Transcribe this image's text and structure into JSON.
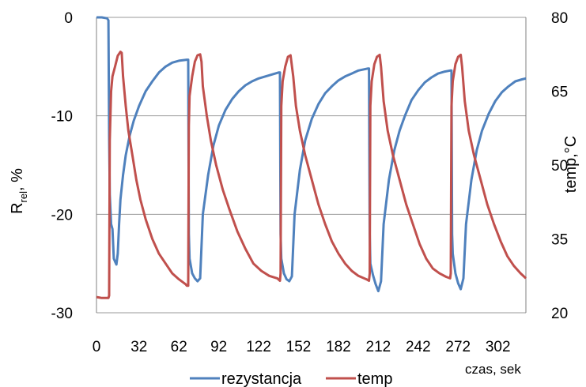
{
  "chart_data": {
    "type": "line",
    "xlabel": "czas, sek",
    "ylabel_left": {
      "main": "R",
      "sub": "rel",
      "tail": ", %"
    },
    "ylabel_right": "temp,°C",
    "x_range": [
      0,
      323
    ],
    "x_ticks": [
      0,
      32,
      62,
      92,
      122,
      152,
      182,
      212,
      242,
      272,
      302
    ],
    "y_left": {
      "range": [
        -30,
        0
      ],
      "ticks": [
        0,
        -10,
        -20,
        -30
      ]
    },
    "y_right": {
      "range": [
        20,
        80
      ],
      "ticks": [
        80,
        65,
        50,
        35,
        20
      ]
    },
    "grid": {
      "horizontal": true,
      "vertical": false
    },
    "legend_position": "bottom",
    "series": [
      {
        "name": "rezystancja",
        "axis": "left",
        "color": "#4F81BD",
        "points": [
          [
            0,
            0
          ],
          [
            4,
            0
          ],
          [
            8,
            -0.1
          ],
          [
            9,
            -0.3
          ],
          [
            9.5,
            -12
          ],
          [
            10,
            -18
          ],
          [
            11,
            -21
          ],
          [
            12,
            -21.5
          ],
          [
            13,
            -24.5
          ],
          [
            14,
            -24.8
          ],
          [
            15,
            -25.1
          ],
          [
            16,
            -24
          ],
          [
            17,
            -21
          ],
          [
            18,
            -18.5
          ],
          [
            20,
            -16
          ],
          [
            22,
            -14
          ],
          [
            25,
            -12
          ],
          [
            28,
            -10.5
          ],
          [
            32,
            -9
          ],
          [
            37,
            -7.5
          ],
          [
            42,
            -6.5
          ],
          [
            47,
            -5.6
          ],
          [
            52,
            -5
          ],
          [
            57,
            -4.6
          ],
          [
            62,
            -4.4
          ],
          [
            68,
            -4.3
          ],
          [
            69,
            -4.3
          ],
          [
            69.5,
            -22
          ],
          [
            70,
            -24.5
          ],
          [
            72,
            -26
          ],
          [
            74,
            -26.5
          ],
          [
            76,
            -26.8
          ],
          [
            78,
            -26.5
          ],
          [
            80,
            -20
          ],
          [
            84,
            -16
          ],
          [
            88,
            -13
          ],
          [
            92,
            -11
          ],
          [
            97,
            -9.4
          ],
          [
            102,
            -8.3
          ],
          [
            107,
            -7.5
          ],
          [
            112,
            -6.9
          ],
          [
            117,
            -6.5
          ],
          [
            122,
            -6.2
          ],
          [
            127,
            -6
          ],
          [
            132,
            -5.8
          ],
          [
            137,
            -5.6
          ],
          [
            138,
            -5.6
          ],
          [
            138.5,
            -22
          ],
          [
            139,
            -24.5
          ],
          [
            141,
            -26
          ],
          [
            143,
            -26.6
          ],
          [
            145,
            -26.8
          ],
          [
            147,
            -26.3
          ],
          [
            149,
            -20
          ],
          [
            153,
            -15.5
          ],
          [
            157,
            -12.5
          ],
          [
            162,
            -10.3
          ],
          [
            167,
            -8.8
          ],
          [
            172,
            -7.7
          ],
          [
            177,
            -7
          ],
          [
            182,
            -6.4
          ],
          [
            187,
            -6
          ],
          [
            192,
            -5.7
          ],
          [
            197,
            -5.4
          ],
          [
            204,
            -5.2
          ],
          [
            205,
            -5.2
          ],
          [
            205.5,
            -22
          ],
          [
            206,
            -25
          ],
          [
            208,
            -26.2
          ],
          [
            210,
            -27.1
          ],
          [
            212,
            -27.8
          ],
          [
            214,
            -26.8
          ],
          [
            216,
            -21
          ],
          [
            220,
            -16.5
          ],
          [
            224,
            -13.5
          ],
          [
            228,
            -11.5
          ],
          [
            232,
            -10
          ],
          [
            237,
            -8.4
          ],
          [
            242,
            -7.4
          ],
          [
            247,
            -6.6
          ],
          [
            252,
            -6.1
          ],
          [
            257,
            -5.7
          ],
          [
            262,
            -5.5
          ],
          [
            266,
            -5.4
          ],
          [
            267,
            -5.4
          ],
          [
            267.5,
            -22
          ],
          [
            268,
            -24
          ],
          [
            270,
            -26
          ],
          [
            272,
            -27
          ],
          [
            274,
            -27.6
          ],
          [
            276,
            -26.5
          ],
          [
            278,
            -21
          ],
          [
            282,
            -16.5
          ],
          [
            286,
            -13.5
          ],
          [
            290,
            -11.5
          ],
          [
            295,
            -9.8
          ],
          [
            300,
            -8.5
          ],
          [
            305,
            -7.6
          ],
          [
            310,
            -7
          ],
          [
            315,
            -6.5
          ],
          [
            320,
            -6.3
          ],
          [
            323,
            -6.2
          ]
        ]
      },
      {
        "name": "temp",
        "axis": "right",
        "color": "#C0504D",
        "points": [
          [
            0,
            23.2
          ],
          [
            4,
            23
          ],
          [
            9,
            23
          ],
          [
            9.5,
            23.5
          ],
          [
            10,
            55
          ],
          [
            11,
            65
          ],
          [
            12,
            68
          ],
          [
            14,
            70
          ],
          [
            16,
            72.2
          ],
          [
            18,
            73
          ],
          [
            19,
            72.8
          ],
          [
            20,
            68
          ],
          [
            22,
            62
          ],
          [
            24,
            57
          ],
          [
            27,
            52
          ],
          [
            30,
            47
          ],
          [
            33,
            43
          ],
          [
            37,
            39
          ],
          [
            42,
            35
          ],
          [
            47,
            32
          ],
          [
            52,
            30
          ],
          [
            57,
            28
          ],
          [
            62,
            26.8
          ],
          [
            67,
            25.8
          ],
          [
            68,
            25.5
          ],
          [
            69,
            25.5
          ],
          [
            69.5,
            58
          ],
          [
            70,
            64
          ],
          [
            72,
            68
          ],
          [
            74,
            71
          ],
          [
            76,
            72.3
          ],
          [
            78,
            72.5
          ],
          [
            79,
            71
          ],
          [
            80,
            66
          ],
          [
            83,
            60
          ],
          [
            86,
            55
          ],
          [
            90,
            50
          ],
          [
            95,
            45
          ],
          [
            100,
            41
          ],
          [
            106,
            36.5
          ],
          [
            112,
            33
          ],
          [
            118,
            30
          ],
          [
            124,
            28.5
          ],
          [
            130,
            27.5
          ],
          [
            136,
            27
          ],
          [
            138,
            26.5
          ],
          [
            138.5,
            28
          ],
          [
            139,
            62
          ],
          [
            140,
            67
          ],
          [
            142,
            70
          ],
          [
            144,
            72
          ],
          [
            146,
            72.3
          ],
          [
            148,
            68
          ],
          [
            150,
            62
          ],
          [
            153,
            57
          ],
          [
            157,
            52
          ],
          [
            162,
            47
          ],
          [
            167,
            42
          ],
          [
            172,
            38
          ],
          [
            177,
            34.5
          ],
          [
            182,
            32
          ],
          [
            187,
            30
          ],
          [
            192,
            28.5
          ],
          [
            197,
            27.5
          ],
          [
            203,
            26.8
          ],
          [
            205,
            26.5
          ],
          [
            205.5,
            28
          ],
          [
            206,
            62
          ],
          [
            207,
            67
          ],
          [
            209,
            70.5
          ],
          [
            211,
            72
          ],
          [
            213,
            72.4
          ],
          [
            214,
            70
          ],
          [
            216,
            63
          ],
          [
            219,
            57
          ],
          [
            223,
            52
          ],
          [
            228,
            47
          ],
          [
            233,
            42
          ],
          [
            238,
            38
          ],
          [
            243,
            34
          ],
          [
            248,
            31
          ],
          [
            253,
            29
          ],
          [
            258,
            28
          ],
          [
            263,
            27.3
          ],
          [
            266,
            27
          ],
          [
            266.5,
            28
          ],
          [
            267,
            62
          ],
          [
            268,
            67
          ],
          [
            270,
            70.5
          ],
          [
            272,
            72
          ],
          [
            274,
            72.4
          ],
          [
            275,
            70
          ],
          [
            277,
            63
          ],
          [
            280,
            57
          ],
          [
            284,
            52
          ],
          [
            289,
            47
          ],
          [
            294,
            42
          ],
          [
            299,
            38
          ],
          [
            304,
            34.5
          ],
          [
            309,
            31.5
          ],
          [
            314,
            29.5
          ],
          [
            319,
            28
          ],
          [
            323,
            27
          ]
        ]
      }
    ]
  }
}
